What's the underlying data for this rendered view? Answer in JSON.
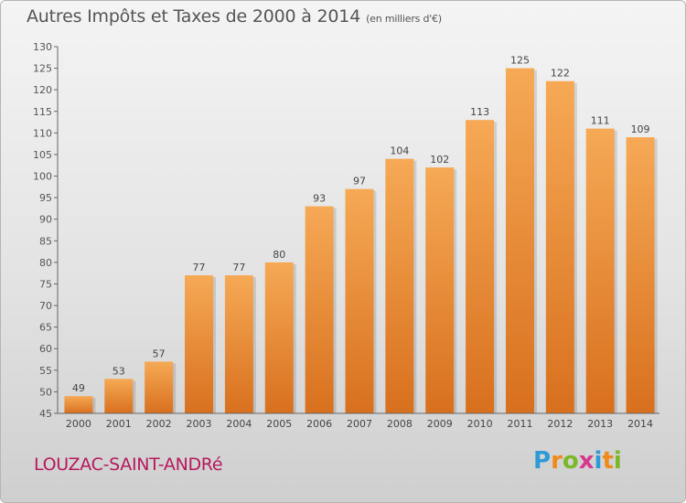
{
  "header": {
    "title": "Autres Impôts et Taxes de 2000 à 2014",
    "unit": "(en milliers d'€)"
  },
  "footer": {
    "commune": "LOUZAC-SAINT-ANDRé",
    "logo_letters": [
      "P",
      "r",
      "o",
      "x",
      "i",
      "t",
      "i"
    ],
    "logo_colors": [
      "#2e9bd6",
      "#f08a1c",
      "#79b928",
      "#d63a8e",
      "#2e9bd6",
      "#f08a1c",
      "#79b928"
    ]
  },
  "colors": {
    "bar_light": "#f6a955",
    "bar_dark": "#d8701e",
    "axis": "#666666",
    "grid": "#999999"
  },
  "chart_data": {
    "type": "bar",
    "title": "Autres Impôts et Taxes de 2000 à 2014",
    "categories": [
      "2000",
      "2001",
      "2002",
      "2003",
      "2004",
      "2005",
      "2006",
      "2007",
      "2008",
      "2009",
      "2010",
      "2011",
      "2012",
      "2013",
      "2014"
    ],
    "values": [
      49,
      53,
      57,
      77,
      77,
      80,
      93,
      97,
      104,
      102,
      113,
      125,
      122,
      111,
      109
    ],
    "ylim": [
      45,
      130
    ],
    "yticks": [
      45,
      50,
      55,
      60,
      65,
      70,
      75,
      80,
      85,
      90,
      95,
      100,
      105,
      110,
      115,
      120,
      125,
      130
    ],
    "grid": false,
    "data_labels": true
  }
}
